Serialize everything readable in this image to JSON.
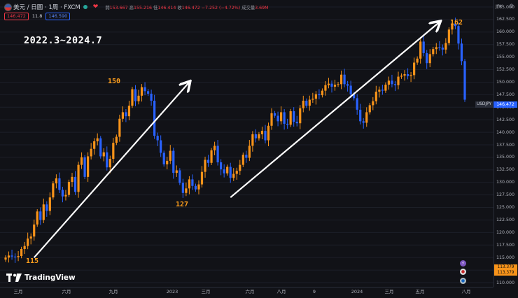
{
  "header": {
    "title": "美元 / 日圓 · 1周 · FXCM",
    "ohlc": [
      {
        "label": "開",
        "value": "153.667"
      },
      {
        "label": "高",
        "value": "155.216"
      },
      {
        "label": "低",
        "value": "146.414"
      },
      {
        "label": "收",
        "value": "146.472"
      }
    ],
    "change": "−7.252 (−4.72%)",
    "volume_label": "成交量",
    "volume_value": "3.69M",
    "bid": "146.472",
    "spread": "11.8",
    "ask": "146.590"
  },
  "currency": "JPY",
  "last_price": "146.472",
  "symbol_tag": "USDJPY",
  "bottom_tags": [
    "113.379",
    "113.379"
  ],
  "logo_text": "TradingView",
  "colors": {
    "up": "#f7931a",
    "down": "#2962ff",
    "background": "#111217",
    "annotation": "#ff9f1c"
  },
  "chart_data": {
    "type": "candlestick",
    "title": "2022.3~2024.7",
    "y_range": [
      110,
      165
    ],
    "y_ticks": [
      "165.000",
      "162.500",
      "160.000",
      "157.500",
      "155.000",
      "152.500",
      "150.000",
      "147.500",
      "145.000",
      "142.500",
      "140.000",
      "137.500",
      "135.000",
      "132.500",
      "130.000",
      "127.500",
      "125.000",
      "122.500",
      "120.000",
      "117.500",
      "115.000",
      "112.500",
      "110.000"
    ],
    "x_ticks": [
      "三月",
      "六月",
      "九月",
      "2023",
      "三月",
      "六月",
      "八月",
      "9",
      "2024",
      "三月",
      "五月",
      "八月"
    ],
    "key_points": [
      {
        "date": "2022-03",
        "value": 115,
        "label": "115"
      },
      {
        "date": "2022-10",
        "value": 150,
        "label": "150"
      },
      {
        "date": "2023-01",
        "value": 127,
        "label": "127"
      },
      {
        "date": "2024-06",
        "value": 162,
        "label": "162"
      }
    ],
    "closes": [
      115.0,
      115.4,
      115.2,
      115.1,
      115.3,
      116.7,
      117.3,
      118.8,
      119.2,
      121.6,
      124.2,
      122.5,
      125.6,
      124.3,
      127.0,
      129.8,
      130.8,
      128.5,
      127.2,
      127.5,
      130.1,
      131.1,
      128.1,
      133.5,
      135.0,
      131.1,
      135.2,
      136.7,
      138.2,
      138.8,
      135.2,
      136.0,
      133.0,
      134.7,
      137.9,
      139.1,
      142.7,
      144.0,
      143.2,
      145.3,
      148.6,
      146.2,
      147.3,
      149.0,
      148.2,
      147.7,
      146.3,
      139.3,
      138.4,
      135.9,
      133.6,
      134.3,
      136.3,
      131.9,
      132.4,
      129.9,
      127.9,
      128.8,
      130.6,
      129.3,
      128.6,
      129.6,
      132.1,
      134.5,
      133.9,
      136.4,
      137.3,
      134.0,
      132.6,
      131.8,
      133.1,
      130.9,
      131.7,
      132.3,
      133.5,
      135.5,
      134.9,
      137.3,
      139.6,
      138.8,
      139.6,
      140.3,
      138.4,
      141.3,
      143.8,
      143.3,
      142.2,
      144.0,
      141.7,
      141.5,
      144.2,
      142.1,
      141.8,
      144.8,
      146.3,
      145.3,
      146.5,
      146.7,
      147.6,
      147.4,
      148.3,
      149.4,
      149.7,
      149.1,
      149.5,
      149.6,
      151.5,
      149.6,
      149.3,
      147.6,
      146.8,
      144.5,
      142.2,
      141.9,
      144.0,
      145.4,
      146.2,
      148.1,
      148.5,
      148.3,
      149.5,
      150.3,
      149.6,
      149.4,
      151.1,
      151.3,
      151.6,
      151.2,
      151.4,
      153.9,
      154.7,
      158.1,
      155.8,
      153.8,
      155.6,
      156.6,
      157.0,
      156.9,
      156.5,
      157.8,
      160.5,
      161.7,
      161.2,
      157.7,
      154.2,
      146.5
    ]
  }
}
